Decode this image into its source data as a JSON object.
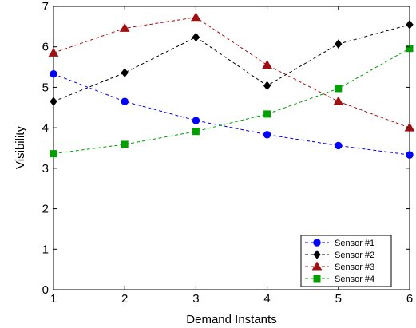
{
  "chart_data": {
    "type": "line",
    "xlabel": "Demand Instants",
    "ylabel": "Visibility",
    "x": [
      1,
      2,
      3,
      4,
      5,
      6
    ],
    "xlim": [
      1,
      6
    ],
    "ylim": [
      0,
      7
    ],
    "xticks": [
      "1",
      "2",
      "3",
      "4",
      "5",
      "6"
    ],
    "yticks": [
      "0",
      "1",
      "2",
      "3",
      "4",
      "5",
      "6",
      "7"
    ],
    "grid": false,
    "legend_position": "bottom-right",
    "series": [
      {
        "name": "Sensor #1",
        "color": "#0000ff",
        "marker": "circle",
        "line_style": "dashed",
        "values": [
          5.33,
          4.65,
          4.18,
          3.83,
          3.56,
          3.33
        ]
      },
      {
        "name": "Sensor #2",
        "color": "#000000",
        "marker": "diamond",
        "line_style": "dashed",
        "values": [
          4.65,
          5.36,
          6.24,
          5.04,
          6.07,
          6.55
        ]
      },
      {
        "name": "Sensor #3",
        "color": "#a01010",
        "marker": "triangle",
        "line_style": "dashed",
        "values": [
          5.85,
          6.46,
          6.73,
          5.55,
          4.65,
          4.0
        ]
      },
      {
        "name": "Sensor #4",
        "color": "#00a000",
        "marker": "square",
        "line_style": "dashed",
        "values": [
          3.36,
          3.59,
          3.91,
          4.34,
          4.97,
          5.96
        ]
      }
    ]
  }
}
